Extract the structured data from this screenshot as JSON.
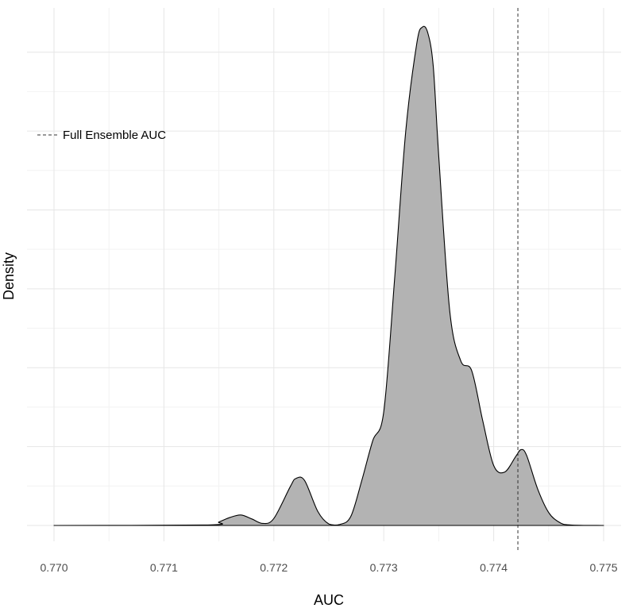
{
  "chart_data": {
    "type": "area",
    "title": "",
    "xlabel": "AUC",
    "ylabel": "Density",
    "xlim": [
      0.77,
      0.775
    ],
    "ylim": [
      0,
      1
    ],
    "x_ticks": [
      0.77,
      0.771,
      0.772,
      0.773,
      0.774,
      0.775
    ],
    "x_tick_labels": [
      "0.770",
      "0.771",
      "0.772",
      "0.773",
      "0.774",
      "0.775"
    ],
    "y_ticks_visible": false,
    "grid": true,
    "legend_position": "top-left",
    "series": [
      {
        "type": "density",
        "fill_color": "#b3b3b3",
        "line_color": "#000000",
        "x": [
          0.77,
          0.7714,
          0.7715,
          0.7716,
          0.7717,
          0.7718,
          0.7719,
          0.772,
          0.77215,
          0.7722,
          0.77228,
          0.7724,
          0.7725,
          0.7726,
          0.7727,
          0.7728,
          0.7729,
          0.773,
          0.7731,
          0.7732,
          0.7733,
          0.77335,
          0.7734,
          0.77345,
          0.7735,
          0.7736,
          0.7737,
          0.7738,
          0.7739,
          0.774,
          0.7741,
          0.7742,
          0.77425,
          0.7743,
          0.7744,
          0.7745,
          0.7746,
          0.7747,
          0.775
        ],
        "y": [
          0.0,
          0.001,
          0.007,
          0.016,
          0.021,
          0.013,
          0.004,
          0.014,
          0.078,
          0.094,
          0.09,
          0.028,
          0.003,
          0.002,
          0.018,
          0.09,
          0.17,
          0.228,
          0.498,
          0.79,
          0.965,
          0.998,
          0.987,
          0.92,
          0.74,
          0.43,
          0.33,
          0.31,
          0.21,
          0.12,
          0.107,
          0.138,
          0.152,
          0.14,
          0.073,
          0.026,
          0.006,
          0.001,
          0.0
        ]
      }
    ],
    "reference_lines": [
      {
        "orientation": "vertical",
        "x": 0.77422,
        "style": "dashed",
        "color": "#333333",
        "label": "Full Ensemble AUC"
      }
    ]
  }
}
